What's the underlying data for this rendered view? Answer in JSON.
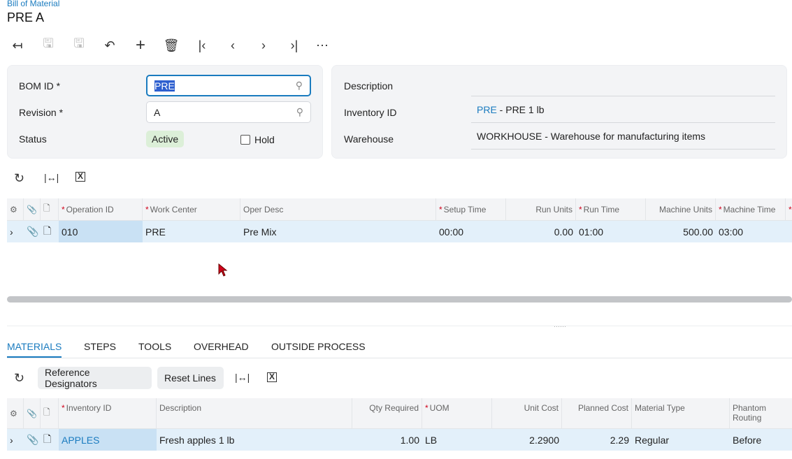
{
  "breadcrumb": "Bill of Material",
  "page_title": "PRE A",
  "toolbar": {
    "icons": [
      "back-icon",
      "save-close-icon",
      "save-icon",
      "undo-icon",
      "add-icon",
      "delete-icon",
      "first-icon",
      "prev-icon",
      "next-icon",
      "last-icon",
      "more-icon"
    ]
  },
  "form": {
    "bom_id_label": "BOM ID",
    "bom_id_value": "PRE",
    "revision_label": "Revision",
    "revision_value": "A",
    "status_label": "Status",
    "status_value": "Active",
    "hold_label": "Hold",
    "hold_checked": false,
    "description_label": "Description",
    "description_value": "",
    "inventory_label": "Inventory ID",
    "inventory_link": "PRE",
    "inventory_desc": " - PRE 1 lb",
    "warehouse_label": "Warehouse",
    "warehouse_value": "WORKHOUSE - Warehouse for manufacturing items"
  },
  "operations": {
    "columns": [
      "Operation ID",
      "Work Center",
      "Oper Desc",
      "Setup Time",
      "Run Units",
      "Run Time",
      "Machine Units",
      "Machine Time"
    ],
    "rows": [
      {
        "operation_id": "010",
        "work_center": "PRE",
        "oper_desc": "Pre Mix",
        "setup_time": "00:00",
        "run_units": "0.00",
        "run_time": "01:00",
        "machine_units": "500.00",
        "machine_time": "03:00"
      }
    ]
  },
  "tabs": [
    "MATERIALS",
    "STEPS",
    "TOOLS",
    "OVERHEAD",
    "OUTSIDE PROCESS"
  ],
  "active_tab": "MATERIALS",
  "materials_toolbar": {
    "reference_designators": "Reference Designators",
    "reset_lines": "Reset Lines"
  },
  "materials": {
    "columns": [
      "Inventory ID",
      "Description",
      "Qty Required",
      "UOM",
      "Unit Cost",
      "Planned Cost",
      "Material Type",
      "Phantom Routing"
    ],
    "rows": [
      {
        "inventory_id": "APPLES",
        "description": "Fresh apples 1 lb",
        "qty_required": "1.00",
        "uom": "LB",
        "unit_cost": "2.2900",
        "planned_cost": "2.29",
        "material_type": "Regular",
        "phantom_routing": "Before"
      }
    ]
  },
  "colors": {
    "accent": "#1a7bbf",
    "selected_row": "#e3f0fa",
    "status_badge": "#dcefd8"
  }
}
